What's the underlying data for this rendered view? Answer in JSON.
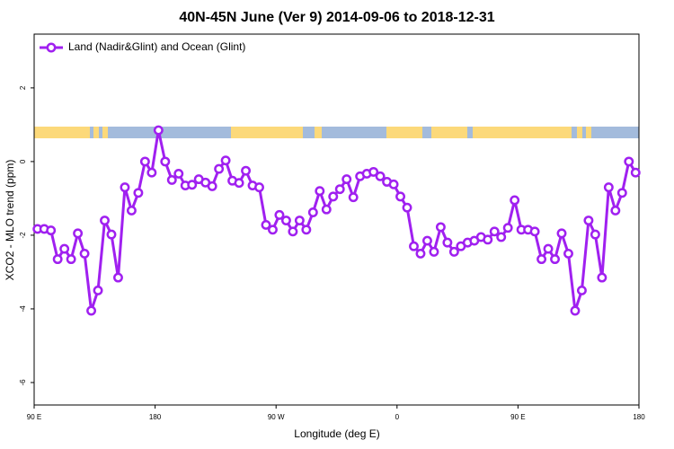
{
  "chart_data": {
    "type": "line",
    "title": "40N-45N June (Ver 9)   2014-09-06 to 2018-12-31",
    "x_label": "Longitude (deg E)",
    "y_label": "XCO2 - MLO trend (ppm)",
    "xlim": [
      90,
      540
    ],
    "ylim": [
      -6.61,
      3.46
    ],
    "xticks": [
      {
        "value": 90,
        "label": "90 E"
      },
      180,
      {
        "value": 270,
        "label": "90 W"
      },
      {
        "value": 360,
        "label": "0"
      },
      {
        "value": 450,
        "label": "90 E"
      },
      {
        "value": 540,
        "label": "180"
      }
    ],
    "yticks": [
      -6,
      -4,
      -2,
      0,
      2
    ],
    "legend": "top-left",
    "x": [
      92.5,
      97.5,
      102.5,
      107.5,
      112.5,
      117.5,
      122.5,
      127.5,
      132.5,
      137.5,
      142.5,
      147.5,
      152.5,
      157.5,
      162.5,
      167.5,
      172.5,
      177.5,
      182.5,
      187.5,
      192.5,
      197.5,
      202.5,
      207.5,
      212.5,
      217.5,
      222.5,
      227.5,
      232.5,
      237.5,
      242.5,
      247.5,
      252.5,
      257.5,
      262.5,
      267.5,
      272.5,
      277.5,
      282.5,
      287.5,
      292.5,
      297.5,
      302.5,
      307.5,
      312.5,
      317.5,
      322.5,
      327.5,
      332.5,
      337.5,
      342.5,
      347.5,
      352.5,
      357.5,
      362.5,
      367.5,
      372.5,
      377.5,
      382.5,
      387.5,
      392.5,
      397.5,
      402.5,
      407.5,
      412.5,
      417.5,
      422.5,
      427.5,
      432.5,
      437.5,
      442.5,
      447.5,
      452.5,
      457.5,
      462.5,
      467.5,
      472.5,
      477.5,
      482.5,
      487.5,
      492.5,
      497.5,
      502.5,
      507.5,
      512.5,
      517.5,
      522.5,
      527.5,
      532.5,
      537.5
    ],
    "series": [
      {
        "name": "Land (Nadir&Glint) and Ocean (Glint)",
        "color": "#a020f0",
        "values": [
          -1.83,
          -1.83,
          -1.87,
          -2.65,
          -2.37,
          -2.65,
          -1.95,
          -2.5,
          -4.05,
          -3.5,
          -1.6,
          -1.98,
          -3.15,
          -0.7,
          -1.33,
          -0.85,
          0,
          -0.3,
          0.85,
          0,
          -0.5,
          -0.33,
          -0.65,
          -0.63,
          -0.48,
          -0.57,
          -0.67,
          -0.2,
          0.03,
          -0.52,
          -0.58,
          -0.25,
          -0.65,
          -0.7,
          -1.72,
          -1.85,
          -1.45,
          -1.6,
          -1.9,
          -1.6,
          -1.85,
          -1.38,
          -0.8,
          -1.3,
          -0.95,
          -0.75,
          -0.48,
          -0.97,
          -0.4,
          -0.33,
          -0.28,
          -0.4,
          -0.55,
          -0.62,
          -0.95,
          -1.25,
          -2.3,
          -2.5,
          -2.15,
          -2.45,
          -1.78,
          -2.2,
          -2.45,
          -2.3,
          -2.2,
          -2.15,
          -2.05,
          -2.12,
          -1.9,
          -2.05,
          -1.8,
          -1.05,
          -1.85,
          -1.85,
          -1.9,
          -2.65,
          -2.37,
          -2.65,
          -1.95,
          -2.5,
          -4.05,
          -3.5,
          -1.6,
          -1.98,
          -3.15,
          -0.7,
          -1.33,
          -0.85,
          0,
          -0.3
        ]
      }
    ]
  }
}
